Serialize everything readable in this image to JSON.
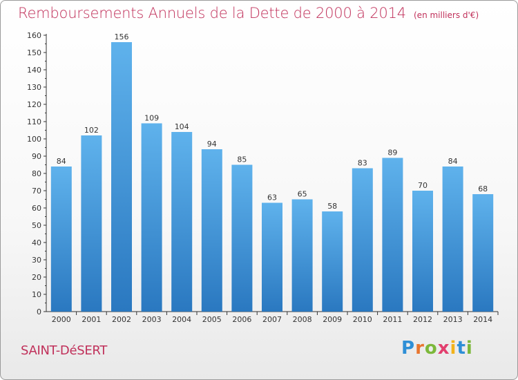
{
  "header": {
    "title": "Remboursements Annuels de la Dette de 2000 à 2014",
    "unit_note": "(en milliers d'€)"
  },
  "footer": {
    "place": "SAINT-DéSERT",
    "logo": "Proxiti"
  },
  "chart_data": {
    "type": "bar",
    "title": "Remboursements Annuels de la Dette de 2000 à 2014",
    "subtitle": "(en milliers d'€)",
    "xlabel": "",
    "ylabel": "",
    "categories": [
      "2000",
      "2001",
      "2002",
      "2003",
      "2004",
      "2005",
      "2006",
      "2007",
      "2008",
      "2009",
      "2010",
      "2011",
      "2012",
      "2013",
      "2014"
    ],
    "values": [
      84,
      102,
      156,
      109,
      104,
      94,
      85,
      63,
      65,
      58,
      83,
      89,
      70,
      84,
      68
    ],
    "ylim": [
      0,
      160
    ],
    "yticks": [
      0,
      10,
      20,
      30,
      40,
      50,
      60,
      70,
      80,
      90,
      100,
      110,
      120,
      130,
      140,
      150,
      160
    ],
    "grid": false,
    "data_labels": true,
    "colors": {
      "bar_top": "#5fb2ec",
      "bar_bottom": "#2a78c0",
      "axis": "#333333",
      "label": "#333333"
    }
  }
}
